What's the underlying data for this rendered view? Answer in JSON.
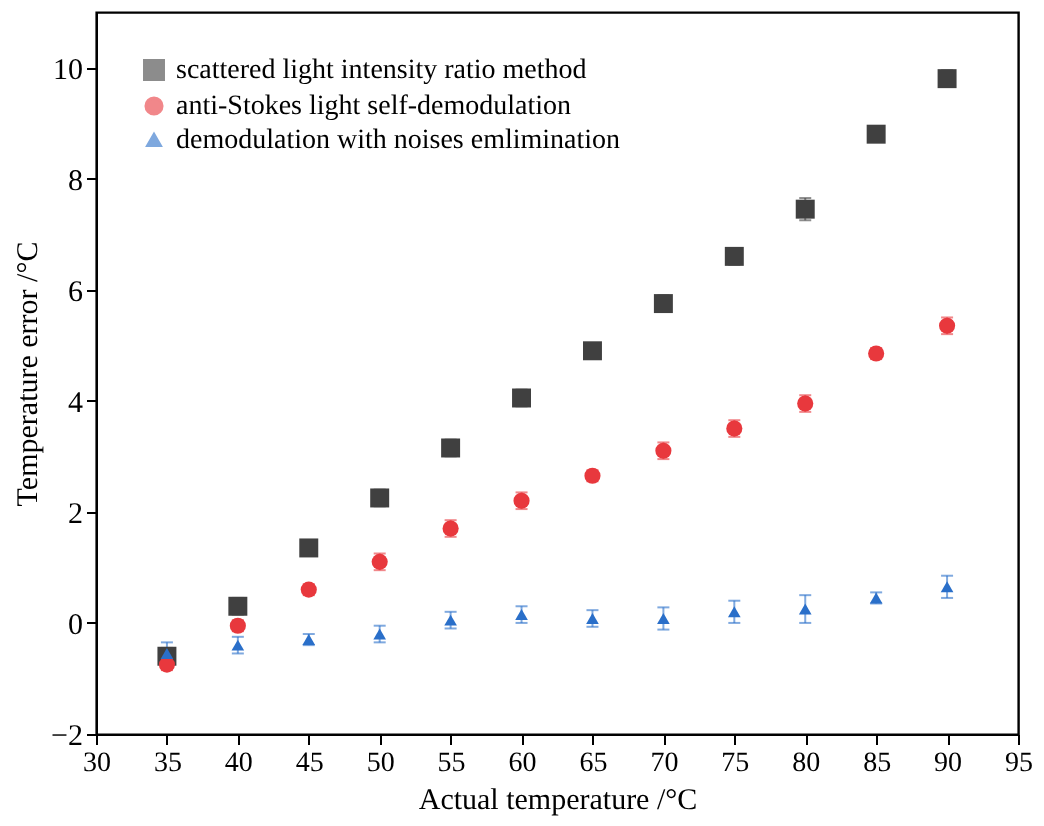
{
  "chart_data": {
    "type": "scatter",
    "xlabel": "Actual temperature /°C",
    "ylabel": "Temperature error /°C",
    "x": [
      35,
      40,
      45,
      50,
      55,
      60,
      65,
      70,
      75,
      80,
      85,
      90
    ],
    "series": [
      {
        "name": "scattered light intensity ratio method",
        "color": "#404040",
        "marker": "square",
        "values": [
          -0.6,
          0.3,
          1.35,
          2.25,
          3.15,
          4.05,
          4.9,
          5.75,
          6.6,
          7.45,
          8.8,
          9.8
        ],
        "errors": [
          0.15,
          0.15,
          0.1,
          0.15,
          0.15,
          0.15,
          0.1,
          0.15,
          0.15,
          0.2,
          0.1,
          0.15
        ]
      },
      {
        "name": "anti-Stokes light self-demodulation",
        "color": "#e8383d",
        "marker": "circle",
        "values": [
          -0.75,
          -0.05,
          0.6,
          1.1,
          1.7,
          2.2,
          2.65,
          3.1,
          3.5,
          3.95,
          4.85,
          5.35
        ],
        "errors": [
          0.1,
          0.1,
          0.1,
          0.15,
          0.15,
          0.15,
          0.1,
          0.15,
          0.15,
          0.15,
          0.1,
          0.15
        ]
      },
      {
        "name": "demodulation with noises emlimination",
        "color": "#2a6fc9",
        "marker": "triangle",
        "values": [
          -0.55,
          -0.4,
          -0.3,
          -0.2,
          0.05,
          0.15,
          0.08,
          0.08,
          0.2,
          0.25,
          0.45,
          0.65
        ],
        "errors": [
          0.2,
          0.15,
          0.1,
          0.15,
          0.15,
          0.15,
          0.15,
          0.2,
          0.2,
          0.25,
          0.1,
          0.2
        ]
      }
    ],
    "xlim": [
      30,
      95
    ],
    "xticks": [
      30,
      35,
      40,
      45,
      50,
      55,
      60,
      65,
      70,
      75,
      80,
      85,
      90,
      95
    ],
    "ylim": [
      -2,
      11
    ],
    "yticks": [
      -2,
      0,
      2,
      4,
      6,
      8,
      10
    ],
    "grid": false,
    "legend": "top left"
  }
}
